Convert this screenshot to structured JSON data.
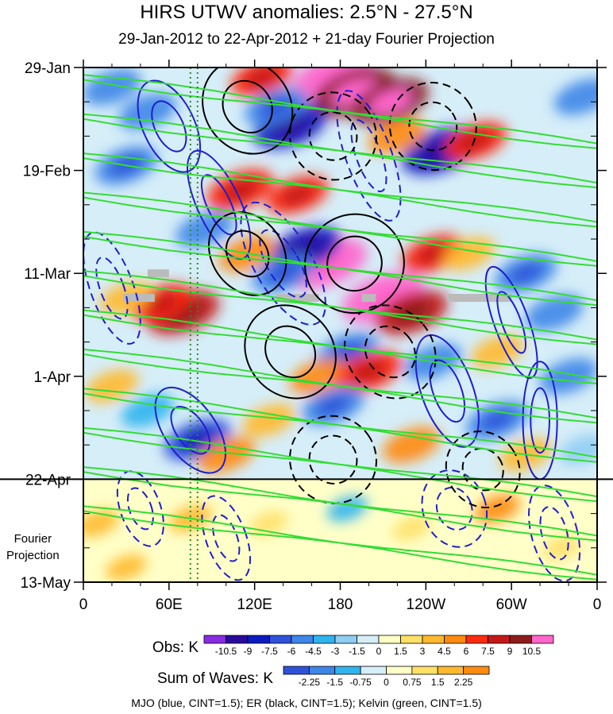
{
  "chart_data": {
    "type": "heatmap",
    "title": "HIRS UTWV anomalies: 2.5°N - 27.5°N",
    "subtitle": "29-Jan-2012 to 22-Apr-2012 + 21-day Fourier Projection",
    "x_axis": {
      "ticks": [
        "0",
        "60E",
        "120E",
        "180",
        "120W",
        "60W",
        "0"
      ],
      "tick_longitudes": [
        0,
        60,
        120,
        180,
        240,
        300,
        360
      ],
      "range": [
        0,
        360
      ]
    },
    "y_axis": {
      "ticks": [
        "29-Jan",
        "19-Feb",
        "11-Mar",
        "1-Apr",
        "22-Apr",
        "13-May"
      ],
      "tick_days": [
        0,
        21,
        42,
        63,
        84,
        105
      ],
      "range": [
        0,
        105
      ],
      "direction": "down"
    },
    "projection_start_day": 84,
    "vertical_marker_longitudes": [
      75,
      80
    ],
    "annotation": "Fourier\nProjection",
    "colorbars": [
      {
        "label": "Obs: K",
        "levels": [
          "-10.5",
          "-9",
          "-7.5",
          "-6",
          "-4.5",
          "-3",
          "-1.5",
          "0",
          "1.5",
          "3",
          "4.5",
          "6",
          "7.5",
          "9",
          "10.5"
        ],
        "colors": [
          "#8a2be2",
          "#2a0a9c",
          "#0b1bbf",
          "#2f52d9",
          "#3e86e8",
          "#2fb4ee",
          "#8fcdf2",
          "#d6eef8",
          "#ffffc8",
          "#ffe066",
          "#ffb92e",
          "#ff8a10",
          "#ff2a10",
          "#c41818",
          "#8c1c1c",
          "#ff66cc"
        ]
      },
      {
        "label": "Sum of Waves: K",
        "levels": [
          "-2.25",
          "-1.5",
          "-0.75",
          "0",
          "0.75",
          "1.5",
          "2.25"
        ],
        "colors": [
          "#2f52d9",
          "#3e86e8",
          "#2fb4ee",
          "#d6eef8",
          "#ffffc8",
          "#ffe066",
          "#ffb92e",
          "#ff8a10"
        ]
      }
    ],
    "contour_overlays": [
      {
        "name": "MJO",
        "color": "#1f1fcc",
        "cint": 1.5
      },
      {
        "name": "ER",
        "color": "#000000",
        "cint": 1.5
      },
      {
        "name": "Kelvin",
        "color": "#33dd33",
        "cint": 1.5
      }
    ],
    "anomaly_patches": [
      {
        "lon": 175,
        "day": 2,
        "value": 11
      },
      {
        "lon": 190,
        "day": 5,
        "value": 10
      },
      {
        "lon": 215,
        "day": 7,
        "value": 9
      },
      {
        "lon": 125,
        "day": 2,
        "value": 6
      },
      {
        "lon": 145,
        "day": 12,
        "value": -8
      },
      {
        "lon": 135,
        "day": 8,
        "value": -6
      },
      {
        "lon": 20,
        "day": 4,
        "value": -5
      },
      {
        "lon": 45,
        "day": 9,
        "value": -5
      },
      {
        "lon": 250,
        "day": 17,
        "value": -9
      },
      {
        "lon": 275,
        "day": 15,
        "value": 6
      },
      {
        "lon": 350,
        "day": 6,
        "value": -5
      },
      {
        "lon": 220,
        "day": 14,
        "value": 5
      },
      {
        "lon": 30,
        "day": 20,
        "value": -6
      },
      {
        "lon": 110,
        "day": 25,
        "value": 7
      },
      {
        "lon": 150,
        "day": 26,
        "value": 6
      },
      {
        "lon": 85,
        "day": 33,
        "value": -5
      },
      {
        "lon": 170,
        "day": 40,
        "value": 11
      },
      {
        "lon": 155,
        "day": 37,
        "value": -8
      },
      {
        "lon": 140,
        "day": 42,
        "value": -6
      },
      {
        "lon": 115,
        "day": 38,
        "value": 5
      },
      {
        "lon": 210,
        "day": 47,
        "value": 11
      },
      {
        "lon": 230,
        "day": 50,
        "value": 8
      },
      {
        "lon": 245,
        "day": 38,
        "value": 6
      },
      {
        "lon": 270,
        "day": 38,
        "value": 4
      },
      {
        "lon": 310,
        "day": 42,
        "value": -6
      },
      {
        "lon": 330,
        "day": 50,
        "value": -5
      },
      {
        "lon": 70,
        "day": 50,
        "value": 8
      },
      {
        "lon": 55,
        "day": 48,
        "value": 6
      },
      {
        "lon": 30,
        "day": 47,
        "value": 4
      },
      {
        "lon": 185,
        "day": 58,
        "value": -6
      },
      {
        "lon": 165,
        "day": 63,
        "value": 5
      },
      {
        "lon": 200,
        "day": 62,
        "value": 7
      },
      {
        "lon": 245,
        "day": 60,
        "value": -5
      },
      {
        "lon": 290,
        "day": 58,
        "value": 4
      },
      {
        "lon": 340,
        "day": 63,
        "value": -5
      },
      {
        "lon": 20,
        "day": 65,
        "value": 4
      },
      {
        "lon": 45,
        "day": 70,
        "value": -4
      },
      {
        "lon": 175,
        "day": 69,
        "value": -6
      },
      {
        "lon": 130,
        "day": 72,
        "value": 4
      },
      {
        "lon": 80,
        "day": 76,
        "value": -7
      },
      {
        "lon": 100,
        "day": 79,
        "value": 5
      },
      {
        "lon": 230,
        "day": 77,
        "value": 5
      },
      {
        "lon": 290,
        "day": 72,
        "value": -6
      },
      {
        "lon": 310,
        "day": 79,
        "value": 4
      },
      {
        "lon": 350,
        "day": 78,
        "value": -3
      },
      {
        "lon": 10,
        "day": 93,
        "value": 2
      },
      {
        "lon": 75,
        "day": 92,
        "value": 2
      },
      {
        "lon": 130,
        "day": 93,
        "value": 1
      },
      {
        "lon": 185,
        "day": 90,
        "value": -1.5
      },
      {
        "lon": 230,
        "day": 94,
        "value": 1
      },
      {
        "lon": 290,
        "day": 90,
        "value": 2.5
      },
      {
        "lon": 335,
        "day": 98,
        "value": 1
      },
      {
        "lon": 30,
        "day": 102,
        "value": 1.5
      }
    ],
    "missing_segments": [
      {
        "lon": [
          28,
          50
        ],
        "day": 47
      },
      {
        "lon": [
          135,
          165
        ],
        "day": 47
      },
      {
        "lon": [
          255,
          300
        ],
        "day": 47
      },
      {
        "lon": [
          45,
          60
        ],
        "day": 42
      },
      {
        "lon": [
          195,
          205
        ],
        "day": 47
      }
    ],
    "mjo_contours": [
      {
        "lon": 60,
        "day": 12,
        "rlon": 18,
        "rday": 10,
        "tilt": -25,
        "dashed": false
      },
      {
        "lon": 95,
        "day": 28,
        "rlon": 15,
        "rday": 12,
        "tilt": -25,
        "dashed": false
      },
      {
        "lon": 140,
        "day": 40,
        "rlon": 20,
        "rday": 14,
        "tilt": -30,
        "dashed": true
      },
      {
        "lon": 300,
        "day": 52,
        "rlon": 12,
        "rday": 12,
        "tilt": -20,
        "dashed": false
      },
      {
        "lon": 75,
        "day": 74,
        "rlon": 18,
        "rday": 10,
        "tilt": -35,
        "dashed": false
      },
      {
        "lon": 255,
        "day": 66,
        "rlon": 18,
        "rday": 12,
        "tilt": -20,
        "dashed": false
      },
      {
        "lon": 320,
        "day": 72,
        "rlon": 12,
        "rday": 12,
        "tilt": 0,
        "dashed": false
      },
      {
        "lon": 40,
        "day": 90,
        "rlon": 14,
        "rday": 8,
        "tilt": -20,
        "dashed": true
      },
      {
        "lon": 100,
        "day": 96,
        "rlon": 14,
        "rday": 9,
        "tilt": -20,
        "dashed": true
      },
      {
        "lon": 260,
        "day": 90,
        "rlon": 22,
        "rday": 8,
        "tilt": -20,
        "dashed": true
      },
      {
        "lon": 330,
        "day": 95,
        "rlon": 16,
        "rday": 10,
        "tilt": -15,
        "dashed": true
      },
      {
        "lon": 200,
        "day": 18,
        "rlon": 16,
        "rday": 14,
        "tilt": -20,
        "dashed": true
      },
      {
        "lon": 20,
        "day": 45,
        "rlon": 15,
        "rday": 12,
        "tilt": -20,
        "dashed": true
      }
    ],
    "er_contours": [
      {
        "lon": 115,
        "day": 8,
        "rlon": 30,
        "rday": 10,
        "tilt": -35,
        "dashed": false
      },
      {
        "lon": 175,
        "day": 14,
        "rlon": 30,
        "rday": 9,
        "tilt": -35,
        "dashed": true
      },
      {
        "lon": 245,
        "day": 12,
        "rlon": 30,
        "rday": 9,
        "tilt": -35,
        "dashed": true
      },
      {
        "lon": 115,
        "day": 38,
        "rlon": 25,
        "rday": 9,
        "tilt": -35,
        "dashed": false
      },
      {
        "lon": 190,
        "day": 40,
        "rlon": 35,
        "rday": 10,
        "tilt": -40,
        "dashed": false
      },
      {
        "lon": 145,
        "day": 58,
        "rlon": 30,
        "rday": 10,
        "tilt": -40,
        "dashed": false
      },
      {
        "lon": 215,
        "day": 58,
        "rlon": 30,
        "rday": 10,
        "tilt": -40,
        "dashed": true
      },
      {
        "lon": 175,
        "day": 80,
        "rlon": 30,
        "rday": 9,
        "tilt": -35,
        "dashed": true
      },
      {
        "lon": 280,
        "day": 82,
        "rlon": 25,
        "rday": 8,
        "tilt": -35,
        "dashed": true
      }
    ],
    "kelvin_contours": [
      {
        "lon0": 0,
        "day0": 2
      },
      {
        "lon0": 0,
        "day0": 10
      },
      {
        "lon0": 0,
        "day0": 18
      },
      {
        "lon0": 0,
        "day0": 26
      },
      {
        "lon0": 0,
        "day0": 34
      },
      {
        "lon0": 0,
        "day0": 42
      },
      {
        "lon0": 0,
        "day0": 50
      },
      {
        "lon0": 0,
        "day0": 58
      },
      {
        "lon0": 0,
        "day0": 66
      },
      {
        "lon0": 0,
        "day0": 74
      },
      {
        "lon0": 0,
        "day0": 82
      },
      {
        "lon0": 0,
        "day0": 90
      }
    ]
  },
  "footer": "MJO (blue, CINT=1.5); ER (black, CINT=1.5); Kelvin (green, CINT=1.5)",
  "fourier_label": "Fourier\nProjection"
}
